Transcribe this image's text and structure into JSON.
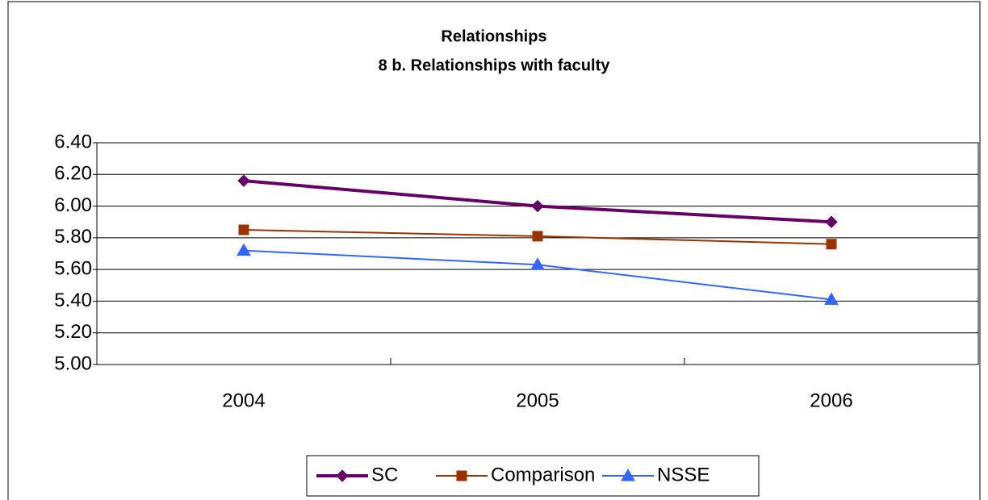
{
  "chart_data": {
    "type": "line",
    "title": "Relationships",
    "subtitle": "8 b. Relationships with faculty",
    "categories": [
      "2004",
      "2005",
      "2006"
    ],
    "series": [
      {
        "name": "SC",
        "color": "#660066",
        "marker": "diamond",
        "values": [
          6.16,
          6.0,
          5.9
        ]
      },
      {
        "name": "Comparison",
        "color": "#993300",
        "marker": "square",
        "values": [
          5.85,
          5.81,
          5.76
        ]
      },
      {
        "name": "NSSE",
        "color": "#3366ff",
        "marker": "triangle",
        "values": [
          5.72,
          5.63,
          5.41
        ]
      }
    ],
    "ylim": [
      5.0,
      6.4
    ],
    "yticks": [
      {
        "value": 5.0,
        "label": "5.00"
      },
      {
        "value": 5.2,
        "label": "5.20"
      },
      {
        "value": 5.4,
        "label": "5.40"
      },
      {
        "value": 5.6,
        "label": "5.60"
      },
      {
        "value": 5.8,
        "label": "5.80"
      },
      {
        "value": 6.0,
        "label": "6.00"
      },
      {
        "value": 6.2,
        "label": "6.20"
      },
      {
        "value": 6.4,
        "label": "6.40"
      }
    ],
    "grid": true,
    "legend": "bottom"
  }
}
